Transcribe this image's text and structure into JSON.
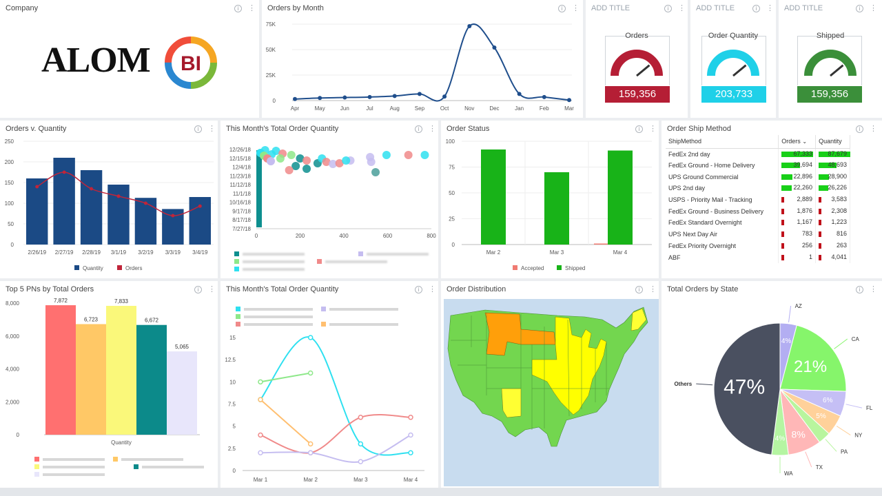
{
  "panels": {
    "company": {
      "title": "Company"
    },
    "orders_by_month": {
      "title": "Orders by Month"
    },
    "gauge1": {
      "title": "ADD TITLE",
      "label": "Orders",
      "value": "159,356",
      "color": "#b51e35",
      "level": 0.78
    },
    "gauge2": {
      "title": "ADD TITLE",
      "label": "Order Quantity",
      "value": "203,733",
      "color": "#1fd0e8",
      "level": 0.78
    },
    "gauge3": {
      "title": "ADD TITLE",
      "label": "Shipped",
      "value": "159,356",
      "color": "#3b8f3a",
      "level": 0.78
    },
    "orders_v_qty": {
      "title": "Orders v. Quantity"
    },
    "month_total_scatter": {
      "title": "This Month's Total Order Quantity"
    },
    "order_status": {
      "title": "Order Status"
    },
    "ship_method": {
      "title": "Order Ship Method"
    },
    "top5": {
      "title": "Top 5 PNs by Total Orders"
    },
    "month_total_line": {
      "title": "This Month's Total Order Quantity"
    },
    "order_distribution": {
      "title": "Order Distribution"
    },
    "orders_by_state": {
      "title": "Total Orders by State"
    }
  },
  "logo": {
    "text": "ALOM",
    "badge": "BI"
  },
  "icons": {
    "info": "info-icon",
    "more": "more-vertical-icon",
    "sort": "sort-desc-icon"
  },
  "ship_table": {
    "headers": [
      "ShipMethod",
      "Orders",
      "Quantity"
    ],
    "rows": [
      {
        "method": "FedEx 2nd day",
        "orders": "67,333",
        "quantity": "87,679",
        "o": 1.0,
        "q": 1.0
      },
      {
        "method": "FedEx Ground - Home Delivery",
        "orders": "39,694",
        "quantity": "48,693",
        "o": 0.59,
        "q": 0.56
      },
      {
        "method": "UPS Ground Commercial",
        "orders": "22,896",
        "quantity": "28,900",
        "o": 0.34,
        "q": 0.33
      },
      {
        "method": "UPS 2nd day",
        "orders": "22,260",
        "quantity": "26,226",
        "o": 0.33,
        "q": 0.3
      },
      {
        "method": "USPS - Priority Mail - Tracking",
        "orders": "2,889",
        "quantity": "3,583",
        "o": 0.05,
        "q": 0.05
      },
      {
        "method": "FedEx Ground - Business Delivery",
        "orders": "1,876",
        "quantity": "2,308",
        "o": 0.03,
        "q": 0.03
      },
      {
        "method": "FedEx Standard Overnight",
        "orders": "1,167",
        "quantity": "1,223",
        "o": 0.02,
        "q": 0.02
      },
      {
        "method": "UPS Next Day Air",
        "orders": "783",
        "quantity": "816",
        "o": 0.02,
        "q": 0.02
      },
      {
        "method": "FedEx Priority Overnight",
        "orders": "256",
        "quantity": "263",
        "o": 0.01,
        "q": 0.01
      },
      {
        "method": "ABF",
        "orders": "1",
        "quantity": "4,041",
        "o": 0.01,
        "q": 0.05
      }
    ]
  },
  "chart_data": [
    {
      "id": "orders_by_month",
      "type": "line",
      "categories": [
        "Apr",
        "May",
        "Jun",
        "Jul",
        "Aug",
        "Sep",
        "Oct",
        "Nov",
        "Dec",
        "Jan",
        "Feb",
        "Mar"
      ],
      "values": [
        1500,
        2500,
        3000,
        3500,
        4500,
        6500,
        4000,
        73000,
        52000,
        6500,
        3500,
        500
      ],
      "ylim": [
        0,
        75000
      ],
      "yticks": [
        "0",
        "25K",
        "50K",
        "75K"
      ],
      "color": "#1f4e8c"
    },
    {
      "id": "orders_v_qty",
      "type": "bar",
      "categories": [
        "2/26/19",
        "2/27/19",
        "2/28/19",
        "3/1/19",
        "3/2/19",
        "3/3/19",
        "3/4/19"
      ],
      "series": [
        {
          "name": "Quantity",
          "type": "bar",
          "values": [
            160,
            210,
            180,
            145,
            113,
            86,
            115
          ],
          "color": "#1b4a85"
        },
        {
          "name": "Orders",
          "type": "line",
          "values": [
            140,
            175,
            135,
            117,
            100,
            70,
            93
          ],
          "color": "#c0253a"
        }
      ],
      "ylim": [
        0,
        250
      ],
      "yticks": [
        "0",
        "50",
        "100",
        "150",
        "200",
        "250"
      ]
    },
    {
      "id": "month_total_scatter",
      "type": "scatter",
      "xticks": [
        "0",
        "200",
        "400",
        "600",
        "800"
      ],
      "yticks": [
        "12/26/18",
        "12/15/18",
        "12/4/18",
        "11/23/18",
        "11/12/18",
        "11/1/18",
        "10/16/18",
        "9/17/18",
        "8/17/18",
        "7/27/18"
      ],
      "xlim": [
        0,
        800
      ],
      "legend_blurred": true
    },
    {
      "id": "order_status",
      "type": "bar",
      "categories": [
        "Mar 2",
        "Mar 3",
        "Mar 4"
      ],
      "series": [
        {
          "name": "Accepted",
          "values": [
            0,
            0,
            1
          ],
          "color": "#f07b72"
        },
        {
          "name": "Shipped",
          "values": [
            92,
            70,
            91
          ],
          "color": "#18b318"
        }
      ],
      "ylim": [
        0,
        100
      ],
      "yticks": [
        "0",
        "25",
        "50",
        "75",
        "100"
      ]
    },
    {
      "id": "top5",
      "type": "bar",
      "categories": [
        "Quantity"
      ],
      "series": [
        {
          "values": [
            7872
          ],
          "label": "7,872",
          "color": "#ff7070"
        },
        {
          "values": [
            6723
          ],
          "label": "6,723",
          "color": "#ffc866"
        },
        {
          "values": [
            7833
          ],
          "label": "7,833",
          "color": "#faf87a"
        },
        {
          "values": [
            6672
          ],
          "label": "6,672",
          "color": "#0c8a8a"
        },
        {
          "values": [
            5065
          ],
          "label": "5,065",
          "color": "#e8e6fb"
        }
      ],
      "ylim": [
        0,
        8000
      ],
      "yticks": [
        "0",
        "2,000",
        "4,000",
        "6,000",
        "8,000"
      ],
      "xlabel": "Quantity",
      "legend_blurred": true
    },
    {
      "id": "month_total_line",
      "type": "line",
      "categories": [
        "Mar 1",
        "Mar 2",
        "Mar 3",
        "Mar 4"
      ],
      "series": [
        {
          "values": [
            8,
            15,
            3,
            2
          ],
          "color": "#2ee0f0"
        },
        {
          "values": [
            10,
            11,
            null,
            null
          ],
          "color": "#8ee88a"
        },
        {
          "values": [
            8,
            3,
            null,
            null
          ],
          "color": "#ffbf70"
        },
        {
          "values": [
            4,
            2,
            6,
            6
          ],
          "color": "#f08a8a"
        },
        {
          "values": [
            2,
            2,
            1,
            4
          ],
          "color": "#c5bdf0"
        }
      ],
      "ylim": [
        0,
        15
      ],
      "yticks": [
        "0",
        "2.5",
        "5",
        "7.5",
        "10",
        "12.5",
        "15"
      ],
      "legend_blurred": true
    },
    {
      "id": "orders_by_state",
      "type": "pie",
      "slices": [
        {
          "name": "Others",
          "value": 47,
          "label": "47%",
          "color": "#4a5060"
        },
        {
          "name": "AZ",
          "value": 4,
          "label": "4%",
          "color": "#b3aef2"
        },
        {
          "name": "CA",
          "value": 21,
          "label": "21%",
          "color": "#86f56b"
        },
        {
          "name": "FL",
          "value": 6,
          "label": "6%",
          "color": "#c5bff5"
        },
        {
          "name": "NY",
          "value": 5,
          "label": "5%",
          "color": "#ffd19a"
        },
        {
          "name": "PA",
          "value": 3,
          "label": "",
          "color": "#b8f59e"
        },
        {
          "name": "TX",
          "value": 8,
          "label": "8%",
          "color": "#ffb7b7"
        },
        {
          "name": "WA",
          "value": 4,
          "label": "4%",
          "color": "#b5f5a2"
        }
      ]
    }
  ]
}
